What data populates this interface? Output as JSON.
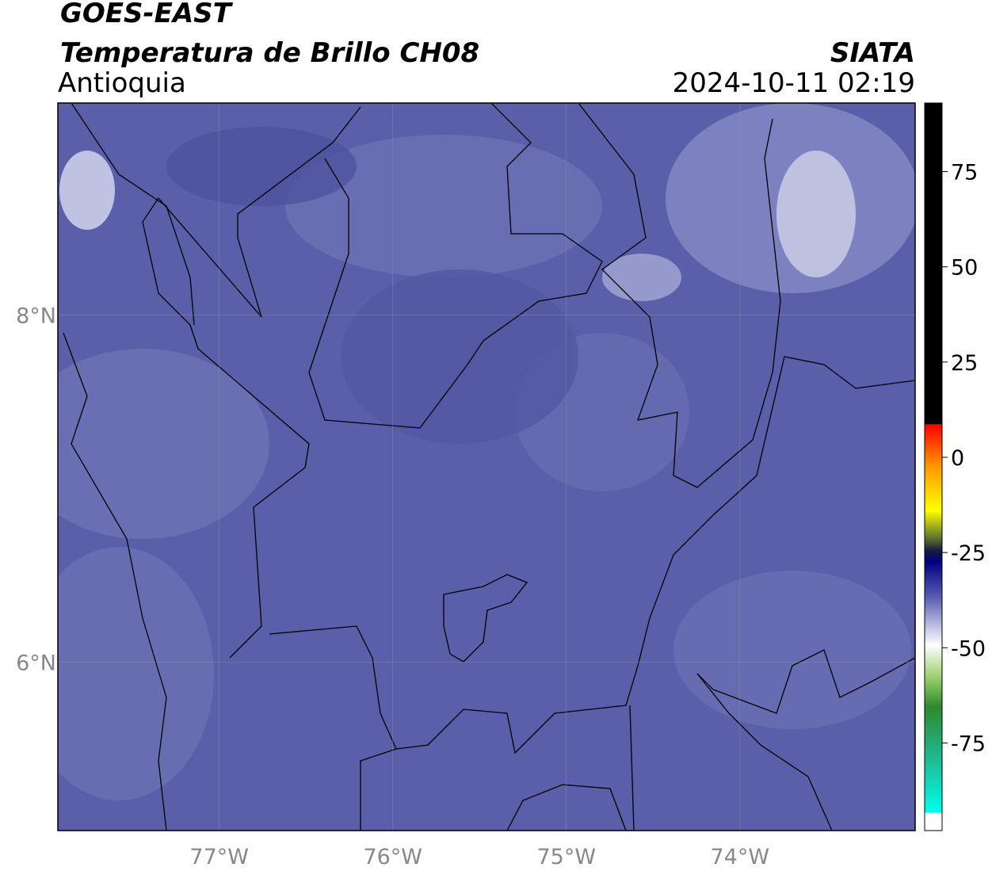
{
  "chart_data": {
    "type": "map",
    "title": "GOES-EAST",
    "subtitle": "Temperatura de Brillo CH08",
    "region": "Antioquia",
    "source": "SIATA",
    "timestamp": "2024-10-11 02:19",
    "xlim": [
      -77.93,
      -72.99
    ],
    "ylim": [
      5.03,
      9.22
    ],
    "xticks": [
      {
        "value": -77,
        "label": "77°W"
      },
      {
        "value": -76,
        "label": "76°W"
      },
      {
        "value": -75,
        "label": "75°W"
      },
      {
        "value": -74,
        "label": "74°W"
      }
    ],
    "yticks": [
      {
        "value": 6,
        "label": "6°N"
      },
      {
        "value": 8,
        "label": "8°N"
      }
    ],
    "grid": true,
    "clim": [
      -98,
      93
    ],
    "cticks": [
      75,
      50,
      25,
      0,
      -25,
      -50,
      -75
    ]
  }
}
